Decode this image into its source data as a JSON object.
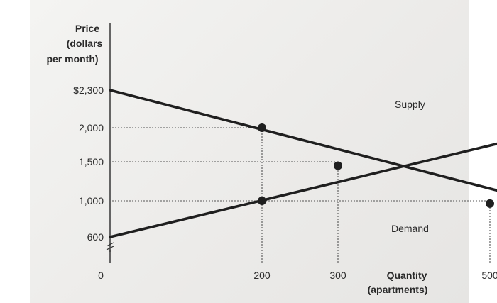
{
  "chart_data": {
    "type": "line",
    "ylabel_lines": [
      "Price",
      "(dollars",
      "per month)"
    ],
    "xlabel_lines": [
      "Quantity",
      "(apartments)"
    ],
    "y_ticks": [
      {
        "value": 2300,
        "label": "$2,300"
      },
      {
        "value": 2000,
        "label": "2,000"
      },
      {
        "value": 1500,
        "label": "1,500"
      },
      {
        "value": 1000,
        "label": "1,000"
      },
      {
        "value": 600,
        "label": "600"
      }
    ],
    "x_ticks": [
      {
        "value": 0,
        "label": "0"
      },
      {
        "value": 200,
        "label": "200"
      },
      {
        "value": 300,
        "label": "300"
      },
      {
        "value": 500,
        "label": "500"
      }
    ],
    "series": [
      {
        "name": "Supply",
        "x": [
          0,
          700
        ],
        "y": [
          600,
          2150
        ]
      },
      {
        "name": "Demand",
        "x": [
          0,
          700
        ],
        "y": [
          2300,
          700
        ]
      }
    ],
    "points": [
      {
        "x": 200,
        "y": 2000
      },
      {
        "x": 200,
        "y": 1000
      },
      {
        "x": 300,
        "y": 1450
      },
      {
        "x": 500,
        "y": 970
      }
    ],
    "reference_lines": [
      {
        "from": [
          0,
          2000
        ],
        "to": [
          200,
          2000
        ]
      },
      {
        "from": [
          0,
          1500
        ],
        "to": [
          300,
          1500
        ]
      },
      {
        "from": [
          0,
          1000
        ],
        "to": [
          500,
          1000
        ]
      },
      {
        "from": [
          200,
          600
        ],
        "to": [
          200,
          2000
        ]
      },
      {
        "from": [
          300,
          600
        ],
        "to": [
          300,
          1450
        ]
      },
      {
        "from": [
          500,
          600
        ],
        "to": [
          500,
          970
        ]
      }
    ],
    "axis_break": true,
    "grid": false
  }
}
